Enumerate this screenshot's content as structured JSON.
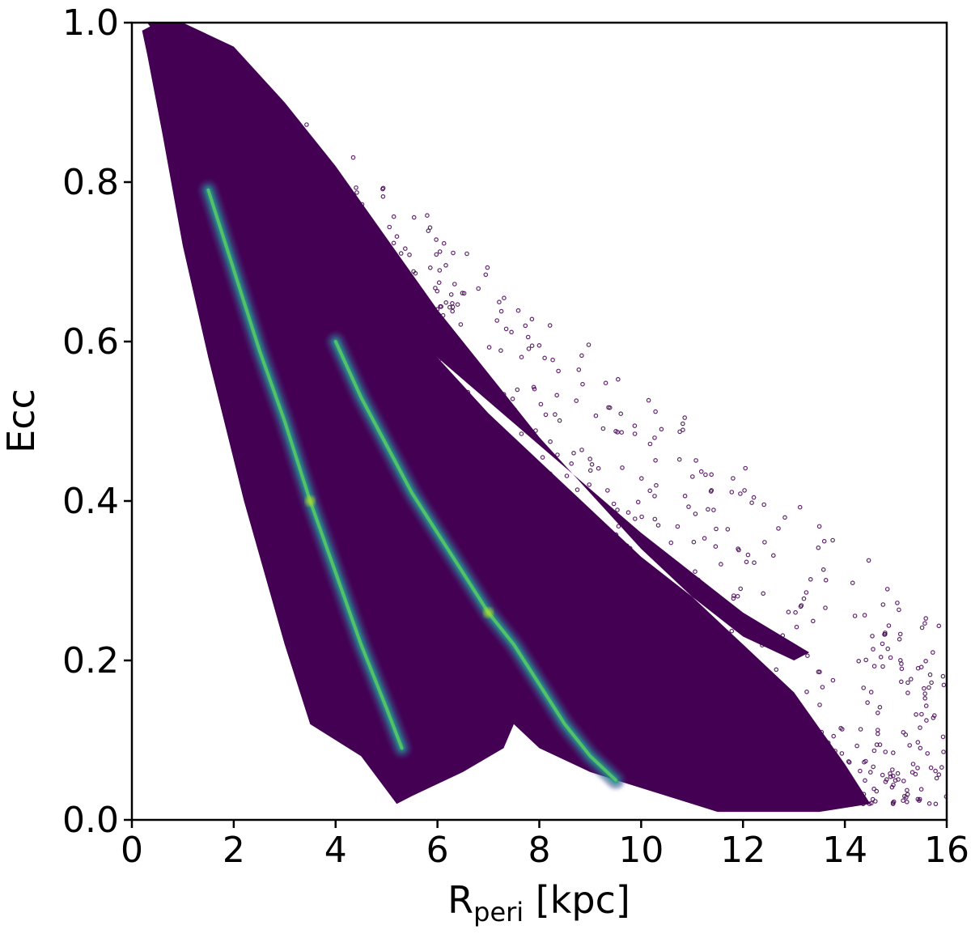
{
  "chart_data": {
    "type": "scatter",
    "title": "",
    "xlabel": {
      "main": "R",
      "sub": "peri",
      "unit": " [kpc]"
    },
    "ylabel": "Ecc",
    "xlim": [
      0,
      16
    ],
    "ylim": [
      0.0,
      1.0
    ],
    "x_ticks": [
      "0",
      "2",
      "4",
      "6",
      "8",
      "10",
      "12",
      "14",
      "16"
    ],
    "y_ticks": [
      "0.0",
      "0.2",
      "0.4",
      "0.6",
      "0.8",
      "1.0"
    ],
    "grid": false,
    "legend": "none",
    "colormap": "viridis",
    "colors": {
      "low_density": "#440154",
      "mid_density": "#3b528b",
      "high_density_1": "#21918c",
      "high_density_2": "#5ec962",
      "peak_density": "#b5de2b"
    },
    "density_regions": {
      "main_envelope": {
        "x": [
          0.2,
          0.5,
          1.0,
          1.5,
          2.0,
          3.0,
          4.0,
          5.0,
          6.0,
          7.0,
          8.0,
          9.0,
          10.0,
          11.0,
          12.0,
          13.0,
          14.0,
          14.5,
          13.5,
          12.5,
          11.5,
          11.0,
          10.0,
          9.0,
          8.0,
          7.5,
          7.3,
          6.5,
          5.5,
          5.2,
          4.5,
          3.5,
          3.0,
          2.2,
          1.5,
          1.0,
          0.6,
          0.3
        ],
        "y": [
          0.99,
          1.0,
          0.98,
          0.94,
          0.88,
          0.79,
          0.72,
          0.65,
          0.58,
          0.51,
          0.45,
          0.39,
          0.33,
          0.28,
          0.22,
          0.16,
          0.07,
          0.02,
          0.01,
          0.01,
          0.01,
          0.02,
          0.04,
          0.06,
          0.09,
          0.12,
          0.09,
          0.06,
          0.03,
          0.02,
          0.08,
          0.12,
          0.22,
          0.4,
          0.58,
          0.72,
          0.86,
          0.96
        ]
      },
      "upper_arc": {
        "x": [
          0.3,
          1.0,
          2.0,
          3.0,
          4.0,
          5.0,
          6.0,
          7.0,
          8.0,
          9.0,
          10.0,
          11.0,
          12.0,
          13.0,
          13.3,
          12.0,
          10.0,
          8.0,
          6.0,
          4.0,
          2.0,
          1.0
        ],
        "y": [
          1.0,
          1.0,
          0.97,
          0.9,
          0.82,
          0.73,
          0.64,
          0.56,
          0.48,
          0.41,
          0.34,
          0.28,
          0.23,
          0.2,
          0.21,
          0.26,
          0.36,
          0.47,
          0.58,
          0.7,
          0.85,
          0.94
        ]
      }
    },
    "series": [
      {
        "x": [
          1.5,
          2.0,
          2.5,
          3.0,
          3.5,
          4.0,
          4.5,
          5.0,
          5.3
        ],
        "y": [
          0.79,
          0.69,
          0.59,
          0.5,
          0.4,
          0.31,
          0.22,
          0.14,
          0.09
        ]
      },
      {
        "x": [
          4.0,
          4.5,
          5.0,
          5.5,
          6.0,
          6.5,
          7.0,
          7.5,
          8.0,
          8.5,
          9.0,
          9.5
        ],
        "y": [
          0.6,
          0.53,
          0.47,
          0.41,
          0.36,
          0.31,
          0.26,
          0.22,
          0.17,
          0.12,
          0.08,
          0.05
        ]
      }
    ]
  }
}
